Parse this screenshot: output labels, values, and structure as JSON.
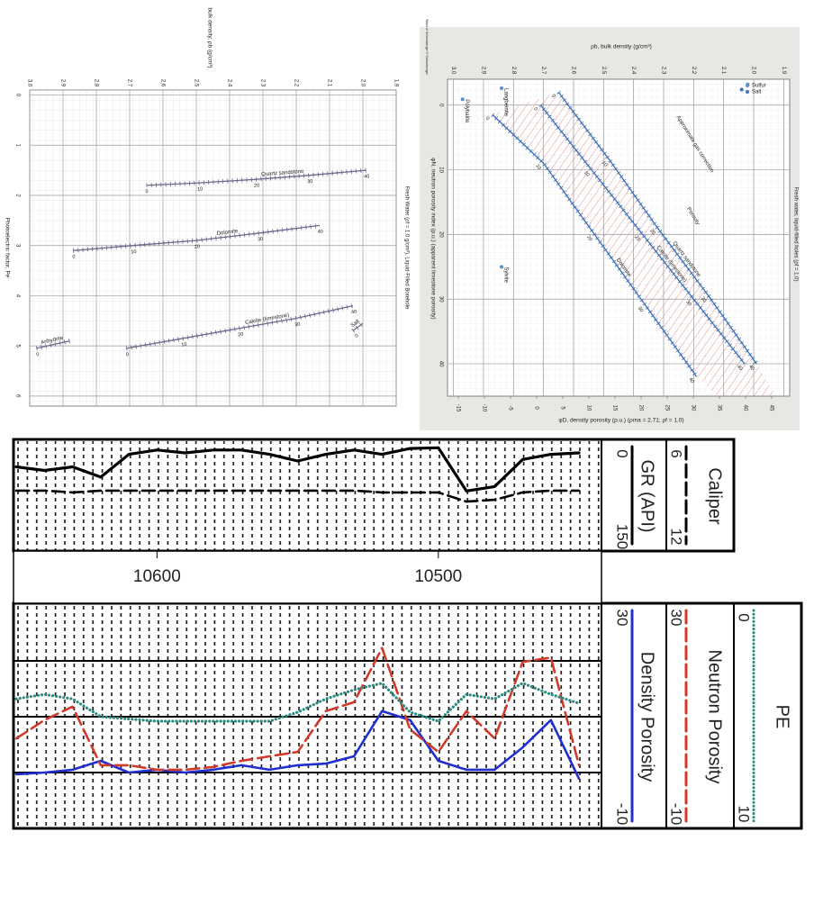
{
  "chart_data": [
    {
      "type": "line",
      "xlabel": "bulk density, ρb (g/cm³)",
      "ylabel": "Photoelectric factor, Pe",
      "annotations": [
        "Fresh Water (ρf = 1.0 g/cm³), Liquid-Filled Borehole"
      ],
      "xlim": [
        3.0,
        1.9
      ],
      "xticks": [
        {
          "value": 3,
          "label": "3.0"
        },
        2.9,
        2.8,
        2.7,
        2.6,
        2.5,
        2.4,
        2.3,
        2.2,
        2.1,
        {
          "value": 2,
          "label": "2.0"
        },
        1.9
      ],
      "ylim": [
        -0.1,
        6.2
      ],
      "yticks": [
        0,
        1,
        2,
        3,
        4,
        5,
        6
      ],
      "grid": true,
      "series": [
        {
          "name": "Quartz sandstone",
          "color": "#6a6a8c",
          "inline": true,
          "porosity": [
            0,
            10,
            20,
            30,
            40
          ],
          "x": [
            2.65,
            2.49,
            2.32,
            2.16,
            1.99
          ],
          "values": [
            1.8,
            1.75,
            1.68,
            1.6,
            1.5
          ]
        },
        {
          "name": "Dolomite",
          "color": "#6a6a8c",
          "inline": true,
          "porosity": [
            0,
            10,
            20,
            30,
            40
          ],
          "x": [
            2.87,
            2.69,
            2.5,
            2.31,
            2.13
          ],
          "values": [
            3.1,
            3.0,
            2.9,
            2.75,
            2.6
          ]
        },
        {
          "name": "Calcite (limestone)",
          "color": "#6a6a8c",
          "inline": true,
          "porosity": [
            0,
            10,
            20,
            30,
            40
          ],
          "x": [
            2.71,
            2.54,
            2.37,
            2.2,
            2.03
          ],
          "values": [
            5.05,
            4.85,
            4.65,
            4.45,
            4.2
          ]
        },
        {
          "name": "Anhydrite",
          "color": "#6a6a8c",
          "inline": true,
          "porosity": [
            0,
            null
          ],
          "x": [
            2.98,
            2.88
          ],
          "values": [
            5.05,
            4.9
          ]
        },
        {
          "name": "Salt",
          "color": "#6a6a8c",
          "inline": true,
          "porosity": [
            0,
            null
          ],
          "x": [
            2.03,
            2.0
          ],
          "values": [
            4.7,
            4.55
          ]
        }
      ]
    },
    {
      "type": "line",
      "xlabel": "ρb, bulk density (g/cm³)",
      "ylabel": "φN, neutron porosity index (p.u.) (apparent limestone porosity)",
      "x2label": "φD, density porosity (p.u.) (ρma = 2.71; ρf = 1.0)",
      "annotations": [
        "Fresh water, liquid-filled holes (ρf = 1.0)",
        "Approximate gas correction",
        "Porosity",
        "*Mark of Schlumberger © Schlumberger"
      ],
      "xlim": [
        3.02,
        1.88
      ],
      "xticks": [
        {
          "value": 3,
          "label": "3.0"
        },
        2.9,
        2.8,
        2.7,
        2.6,
        2.5,
        2.4,
        2.3,
        2.2,
        2.1,
        {
          "value": 2,
          "label": "2.0"
        },
        1.9
      ],
      "ylim": [
        -4,
        45
      ],
      "yticks": [
        0,
        10,
        20,
        30,
        40
      ],
      "x2lim": [
        -15,
        45
      ],
      "x2ticks": [
        -15,
        -10,
        -5,
        0,
        5,
        10,
        15,
        20,
        25,
        30,
        35,
        40,
        45
      ],
      "grid": true,
      "legend": "upper right",
      "series": [
        {
          "name": "Quartz sandstone",
          "color": "#3b6fb6",
          "inline": true,
          "porosity": [
            0,
            10,
            20,
            30,
            40
          ],
          "x": [
            2.65,
            2.48,
            2.32,
            2.15,
            1.99
          ],
          "values": [
            -2,
            8.5,
            19,
            29.5,
            40
          ]
        },
        {
          "name": "Calcite (limestone)",
          "color": "#3b6fb6",
          "inline": true,
          "porosity": [
            0,
            10,
            20,
            30,
            40
          ],
          "x": [
            2.71,
            2.54,
            2.37,
            2.2,
            2.03
          ],
          "values": [
            0,
            10,
            20,
            30,
            40
          ]
        },
        {
          "name": "Dolomite",
          "color": "#3b6fb6",
          "inline": true,
          "porosity": [
            0,
            10,
            20,
            30,
            40
          ],
          "x": [
            2.87,
            2.7,
            2.53,
            2.36,
            2.19
          ],
          "values": [
            1.5,
            9,
            20,
            31,
            42
          ]
        },
        {
          "name": "Langbeinite",
          "color": "#5b8fc9",
          "inline": true,
          "style": "points",
          "x": [
            2.84
          ],
          "values": [
            -2.6
          ]
        },
        {
          "name": "Polyhalite",
          "color": "#5b8fc9",
          "inline": true,
          "style": "points",
          "x": [
            2.97
          ],
          "values": [
            -0.9
          ]
        },
        {
          "name": "Sylvite",
          "color": "#5b8fc9",
          "inline": true,
          "style": "points",
          "x": [
            2.84
          ],
          "values": [
            25
          ]
        },
        {
          "name": "Sulfur",
          "color": "#5b8fc9",
          "style": "points",
          "x": [
            2.02
          ],
          "values": [
            -3.2
          ]
        },
        {
          "name": "Salt",
          "color": "#3b6fb6",
          "style": "points",
          "x": [
            2.04
          ],
          "values": [
            -2.4
          ]
        }
      ]
    },
    {
      "type": "well_log",
      "x": [
        10650,
        10640,
        10630,
        10620,
        10610,
        10600,
        10590,
        10580,
        10570,
        10560,
        10550,
        10540,
        10530,
        10520,
        10510,
        10500,
        10490,
        10480,
        10470,
        10460,
        10450
      ],
      "xlim": [
        10651,
        10442
      ],
      "xticks": [
        10600,
        10500
      ],
      "tracks": [
        {
          "series": [
            {
              "name": "GR (API)",
              "color": "#000000",
              "dash": "solid",
              "ylim": [
                0,
                150
              ],
              "values": [
                35,
                40,
                35,
                49,
                18,
                12,
                16,
                12,
                12,
                18,
                27,
                18,
                12,
                18,
                10,
                9,
                68,
                62,
                25,
                18,
                16
              ]
            },
            {
              "name": "Caliper",
              "color": "#000000",
              "dash": "dashed",
              "ylim": [
                6,
                12
              ],
              "values": [
                8.7,
                8.7,
                8.8,
                8.7,
                8.7,
                8.7,
                8.7,
                8.7,
                8.7,
                8.7,
                8.7,
                8.7,
                8.7,
                8.8,
                8.8,
                8.8,
                9.3,
                9.2,
                8.8,
                8.7,
                8.7
              ]
            }
          ]
        },
        {
          "series": [
            {
              "name": "Density Porosity",
              "color": "#1f2fd0",
              "dash": "solid",
              "ylim": [
                30,
                -10
              ],
              "values": [
                -0.3,
                0,
                0.5,
                2.1,
                0,
                0.5,
                0,
                0.5,
                1.3,
                0.5,
                1.3,
                1.6,
                2.9,
                11,
                9.4,
                2.1,
                0.5,
                0.5,
                4.5,
                9.4,
                -1.1
              ]
            },
            {
              "name": "Neutron Porosity",
              "color": "#d03a2a",
              "dash": "dashed",
              "ylim": [
                30,
                -10
              ],
              "values": [
                6.1,
                9.4,
                11.8,
                1.3,
                1.3,
                0.5,
                0.5,
                1,
                2.1,
                2.9,
                3.7,
                11,
                12.6,
                22.3,
                7.7,
                3.7,
                11,
                6.1,
                19.8,
                20.6,
                1.3
              ]
            },
            {
              "name": "PE",
              "color": "#2a8c80",
              "dash": "dotted",
              "ylim": [
                0,
                10
              ],
              "values": [
                4.2,
                4,
                4.2,
                5,
                5.1,
                5.2,
                5.2,
                5.2,
                5.2,
                5.2,
                4.8,
                4.2,
                3.8,
                3.5,
                4.8,
                5.2,
                4,
                4.2,
                3.5,
                4,
                4.4
              ]
            }
          ]
        }
      ]
    }
  ]
}
